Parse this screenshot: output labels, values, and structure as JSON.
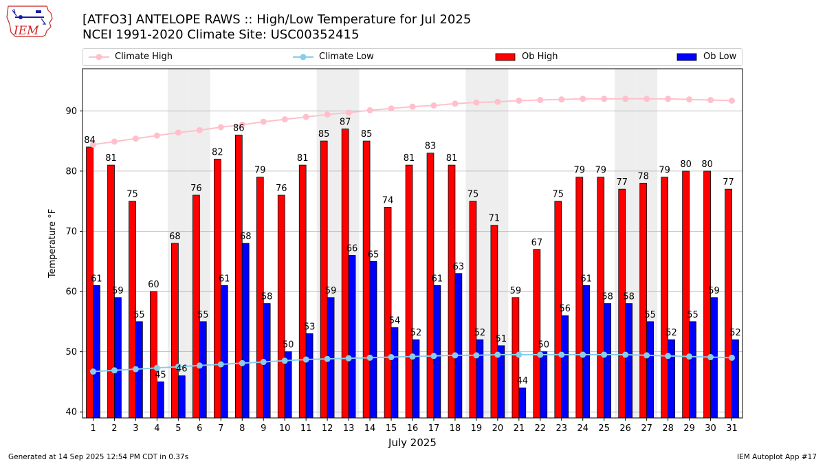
{
  "logo": {
    "text": "IEM"
  },
  "title": {
    "line1": "[ATFO3] ANTELOPE RAWS :: High/Low Temperature for Jul 2025",
    "line2": "NCEI 1991-2020 Climate Site: USC00352415"
  },
  "legend": {
    "items": [
      {
        "label": "Climate High",
        "color": "#ffc0cb",
        "kind": "line-marker"
      },
      {
        "label": "Climate Low",
        "color": "#87ceeb",
        "kind": "line-marker"
      },
      {
        "label": "Ob High",
        "color": "#ff0000",
        "kind": "bar"
      },
      {
        "label": "Ob Low",
        "color": "#0000ff",
        "kind": "bar"
      }
    ],
    "placement": "top, above plot"
  },
  "footer": {
    "left": "Generated at 14 Sep 2025 12:54 PM CDT in 0.37s",
    "right": "IEM Autoplot App #17"
  },
  "chart_data": {
    "type": "bar",
    "title": "[ATFO3] ANTELOPE RAWS :: High/Low Temperature for Jul 2025",
    "subtitle": "NCEI 1991-2020 Climate Site: USC00352415",
    "xlabel": "July 2025",
    "ylabel": "Temperature °F",
    "ylim": [
      39,
      97
    ],
    "yticks": [
      40,
      50,
      60,
      70,
      80,
      90
    ],
    "grid": "horizontal",
    "weekend_shading_days": [
      5,
      6,
      12,
      13,
      19,
      20,
      26,
      27
    ],
    "categories": [
      "1",
      "2",
      "3",
      "4",
      "5",
      "6",
      "7",
      "8",
      "9",
      "10",
      "11",
      "12",
      "13",
      "14",
      "15",
      "16",
      "17",
      "18",
      "19",
      "20",
      "21",
      "22",
      "23",
      "24",
      "25",
      "26",
      "27",
      "28",
      "29",
      "30",
      "31"
    ],
    "series": [
      {
        "name": "Ob High",
        "type": "bar",
        "color": "#ff0000",
        "values": [
          84,
          81,
          75,
          60,
          68,
          76,
          82,
          86,
          79,
          76,
          81,
          85,
          87,
          85,
          74,
          81,
          83,
          81,
          75,
          71,
          59,
          67,
          75,
          79,
          79,
          77,
          78,
          79,
          80,
          80,
          77
        ]
      },
      {
        "name": "Ob Low",
        "type": "bar",
        "color": "#0000ff",
        "values": [
          61,
          59,
          55,
          45,
          46,
          55,
          61,
          68,
          58,
          50,
          53,
          59,
          66,
          65,
          54,
          52,
          61,
          63,
          52,
          51,
          44,
          50,
          56,
          61,
          58,
          58,
          55,
          52,
          55,
          59,
          52
        ]
      },
      {
        "name": "Climate High",
        "type": "line",
        "color": "#ffc0cb",
        "values": [
          84.4,
          84.9,
          85.4,
          85.9,
          86.4,
          86.8,
          87.3,
          87.7,
          88.2,
          88.6,
          89.0,
          89.4,
          89.7,
          90.1,
          90.4,
          90.7,
          90.9,
          91.2,
          91.4,
          91.5,
          91.7,
          91.8,
          91.9,
          92.0,
          92.0,
          92.0,
          92.0,
          92.0,
          91.9,
          91.8,
          91.7
        ]
      },
      {
        "name": "Climate Low",
        "type": "line",
        "color": "#87ceeb",
        "values": [
          46.7,
          46.9,
          47.1,
          47.3,
          47.5,
          47.7,
          47.9,
          48.1,
          48.3,
          48.5,
          48.7,
          48.8,
          48.9,
          49.0,
          49.1,
          49.2,
          49.3,
          49.4,
          49.4,
          49.5,
          49.5,
          49.5,
          49.5,
          49.5,
          49.5,
          49.5,
          49.4,
          49.3,
          49.2,
          49.1,
          49.0
        ]
      }
    ]
  }
}
